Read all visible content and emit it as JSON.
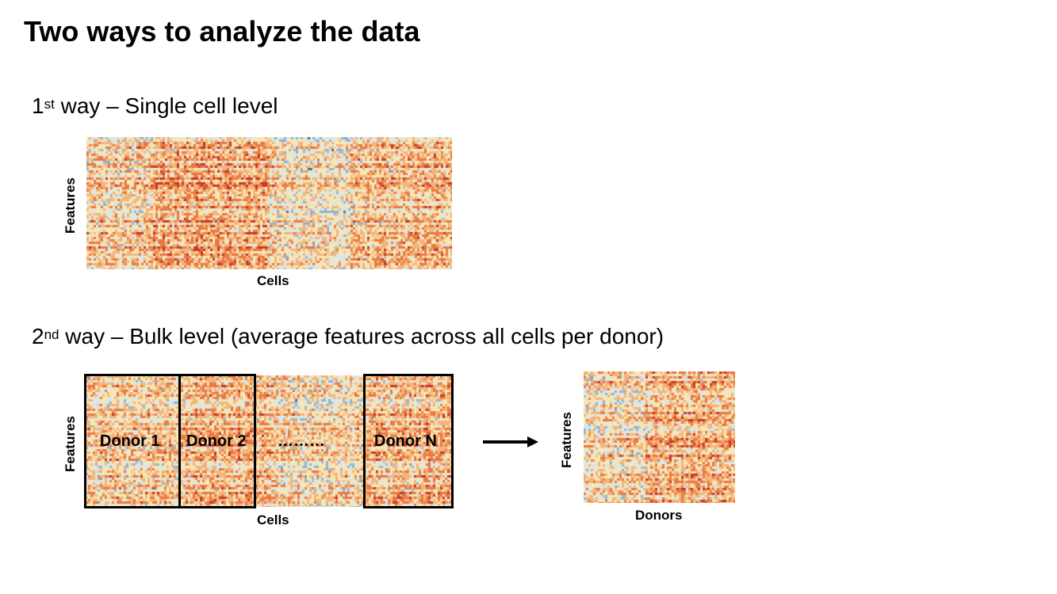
{
  "title": "Two ways to analyze the data",
  "section1": {
    "num": "1",
    "sup": "st",
    "text": " way – Single cell level"
  },
  "section2": {
    "num": "2",
    "sup": "nd",
    "text": " way – Bulk level (average features across all cells per donor)"
  },
  "heatmap1": {
    "ylabel": "Features",
    "xlabel": "Cells"
  },
  "heatmap2": {
    "ylabel": "Features",
    "xlabel": "Cells",
    "donors": [
      "Donor 1",
      "Donor 2",
      "………",
      "Donor N"
    ]
  },
  "heatmap3": {
    "ylabel": "Features",
    "xlabel": "Donors"
  },
  "colors": {
    "palette": [
      "#3f6fb3",
      "#8fb6d6",
      "#d9e6ec",
      "#f6e7b5",
      "#f4b57a",
      "#ea7a45",
      "#c63a2b"
    ]
  }
}
